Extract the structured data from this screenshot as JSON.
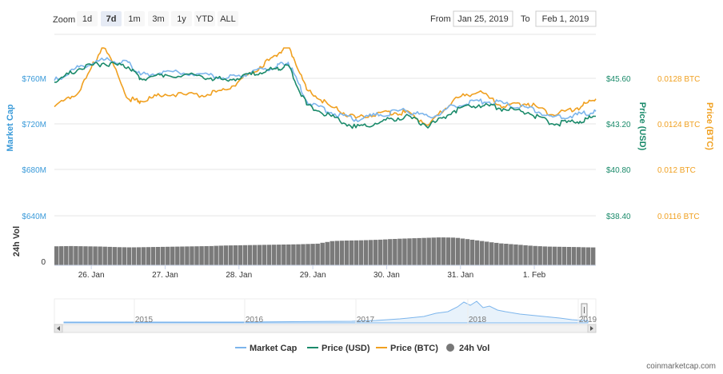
{
  "toolbar": {
    "zoom_label": "Zoom",
    "zoom_buttons": [
      "1d",
      "7d",
      "1m",
      "3m",
      "1y",
      "YTD",
      "ALL"
    ],
    "active_zoom": "7d",
    "from_label": "From",
    "from_value": "Jan 25, 2019",
    "to_label": "To",
    "to_value": "Feb 1, 2019"
  },
  "axes": {
    "left_title": "Market Cap",
    "left_ticks": [
      "$760M",
      "$720M",
      "$680M",
      "$640M"
    ],
    "usd_title": "Price (USD)",
    "usd_ticks": [
      "$45.60",
      "$43.20",
      "$40.80",
      "$38.40"
    ],
    "btc_title": "Price (BTC)",
    "btc_ticks": [
      "0.0128 BTC",
      "0.0124 BTC",
      "0.012 BTC",
      "0.0116 BTC"
    ],
    "vol_title": "24h Vol",
    "vol_zero": "0",
    "x_ticks": [
      "26. Jan",
      "27. Jan",
      "28. Jan",
      "29. Jan",
      "30. Jan",
      "31. Jan",
      "1. Feb"
    ]
  },
  "navigator": {
    "years": [
      "2015",
      "2016",
      "2017",
      "2018",
      "2019"
    ]
  },
  "legend": {
    "items": [
      {
        "label": "Market Cap",
        "color": "#7cb5ec",
        "marker": "line"
      },
      {
        "label": "Price (USD)",
        "color": "#1a8a6a",
        "marker": "line"
      },
      {
        "label": "Price (BTC)",
        "color": "#f0a020",
        "marker": "line"
      },
      {
        "label": "24h Vol",
        "color": "#777777",
        "marker": "circle"
      }
    ]
  },
  "credit": "coinmarketcap.com",
  "colors": {
    "market_cap": "#7cb5ec",
    "price_usd": "#1a8a6a",
    "price_btc": "#f0a020",
    "volume": "#7a7a7a",
    "grid": "#e6e6e6"
  },
  "chart_data": {
    "type": "line",
    "x_range": [
      "Jan 25, 2019",
      "Feb 1, 2019"
    ],
    "series": [
      {
        "name": "Market Cap",
        "unit": "USD (millions)",
        "y_range": [
          640,
          780
        ],
        "points": [
          [
            "Jan 25 12:00",
            758
          ],
          [
            "Jan 25 20:00",
            770
          ],
          [
            "Jan 26 04:00",
            776
          ],
          [
            "Jan 26 12:00",
            774
          ],
          [
            "Jan 26 16:00",
            763
          ],
          [
            "Jan 27 00:00",
            766
          ],
          [
            "Jan 27 12:00",
            764
          ],
          [
            "Jan 27 20:00",
            760
          ],
          [
            "Jan 28 04:00",
            765
          ],
          [
            "Jan 28 12:00",
            770
          ],
          [
            "Jan 28 16:00",
            774
          ],
          [
            "Jan 28 22:00",
            740
          ],
          [
            "Jan 29 06:00",
            730
          ],
          [
            "Jan 29 14:00",
            724
          ],
          [
            "Jan 29 22:00",
            728
          ],
          [
            "Jan 30 06:00",
            732
          ],
          [
            "Jan 30 14:00",
            726
          ],
          [
            "Jan 30 22:00",
            736
          ],
          [
            "Jan 31 06:00",
            740
          ],
          [
            "Jan 31 14:00",
            738
          ],
          [
            "Jan 31 22:00",
            734
          ],
          [
            "Feb 1 06:00",
            726
          ],
          [
            "Feb 1 14:00",
            728
          ],
          [
            "Feb 1 20:00",
            731
          ]
        ]
      },
      {
        "name": "Price (USD)",
        "unit": "USD",
        "y_range": [
          37.6,
          46.0
        ],
        "points": [
          [
            "Jan 25 12:00",
            45.4
          ],
          [
            "Jan 25 20:00",
            46.1
          ],
          [
            "Jan 26 04:00",
            46.4
          ],
          [
            "Jan 26 12:00",
            46.2
          ],
          [
            "Jan 26 16:00",
            45.6
          ],
          [
            "Jan 27 00:00",
            45.8
          ],
          [
            "Jan 27 12:00",
            45.7
          ],
          [
            "Jan 27 20:00",
            45.5
          ],
          [
            "Jan 28 04:00",
            45.8
          ],
          [
            "Jan 28 12:00",
            46.1
          ],
          [
            "Jan 28 16:00",
            46.3
          ],
          [
            "Jan 28 22:00",
            44.2
          ],
          [
            "Jan 29 06:00",
            43.6
          ],
          [
            "Jan 29 14:00",
            43.0
          ],
          [
            "Jan 29 22:00",
            43.3
          ],
          [
            "Jan 30 06:00",
            43.6
          ],
          [
            "Jan 30 14:00",
            43.1
          ],
          [
            "Jan 30 22:00",
            43.9
          ],
          [
            "Jan 31 06:00",
            44.2
          ],
          [
            "Jan 31 14:00",
            44.0
          ],
          [
            "Jan 31 22:00",
            43.8
          ],
          [
            "Feb 1 06:00",
            43.2
          ],
          [
            "Feb 1 14:00",
            43.3
          ],
          [
            "Feb 1 20:00",
            43.6
          ]
        ]
      },
      {
        "name": "Price (BTC)",
        "unit": "BTC",
        "y_range": [
          0.0116,
          0.013
        ],
        "points": [
          [
            "Jan 25 12:00",
            0.01255
          ],
          [
            "Jan 25 20:00",
            0.01268
          ],
          [
            "Jan 26 04:00",
            0.0131
          ],
          [
            "Jan 26 12:00",
            0.01262
          ],
          [
            "Jan 26 16:00",
            0.0126
          ],
          [
            "Jan 27 00:00",
            0.01266
          ],
          [
            "Jan 27 12:00",
            0.01265
          ],
          [
            "Jan 27 20:00",
            0.0127
          ],
          [
            "Jan 28 04:00",
            0.01285
          ],
          [
            "Jan 28 12:00",
            0.013
          ],
          [
            "Jan 28 16:00",
            0.0131
          ],
          [
            "Jan 28 22:00",
            0.0127
          ],
          [
            "Jan 29 06:00",
            0.01255
          ],
          [
            "Jan 29 14:00",
            0.01245
          ],
          [
            "Jan 29 22:00",
            0.0125
          ],
          [
            "Jan 30 06:00",
            0.0125
          ],
          [
            "Jan 30 14:00",
            0.0124
          ],
          [
            "Jan 30 22:00",
            0.01262
          ],
          [
            "Jan 31 06:00",
            0.01268
          ],
          [
            "Jan 31 14:00",
            0.01255
          ],
          [
            "Jan 31 22:00",
            0.01258
          ],
          [
            "Feb 1 06:00",
            0.01248
          ],
          [
            "Feb 1 14:00",
            0.01254
          ],
          [
            "Feb 1 20:00",
            0.01262
          ]
        ]
      },
      {
        "name": "24h Vol",
        "unit": "USD",
        "values_relative": [
          0.72,
          0.73,
          0.72,
          0.71,
          0.69,
          0.68,
          0.69,
          0.7,
          0.71,
          0.72,
          0.73,
          0.75,
          0.76,
          0.77,
          0.78,
          0.79,
          0.8,
          0.82,
          0.92,
          0.94,
          0.95,
          0.97,
          1.0,
          1.02,
          1.04,
          1.06,
          1.05,
          0.98,
          0.9,
          0.83,
          0.79,
          0.74,
          0.71,
          0.7,
          0.69,
          0.68
        ]
      }
    ],
    "legend_position": "bottom",
    "grid": true
  }
}
